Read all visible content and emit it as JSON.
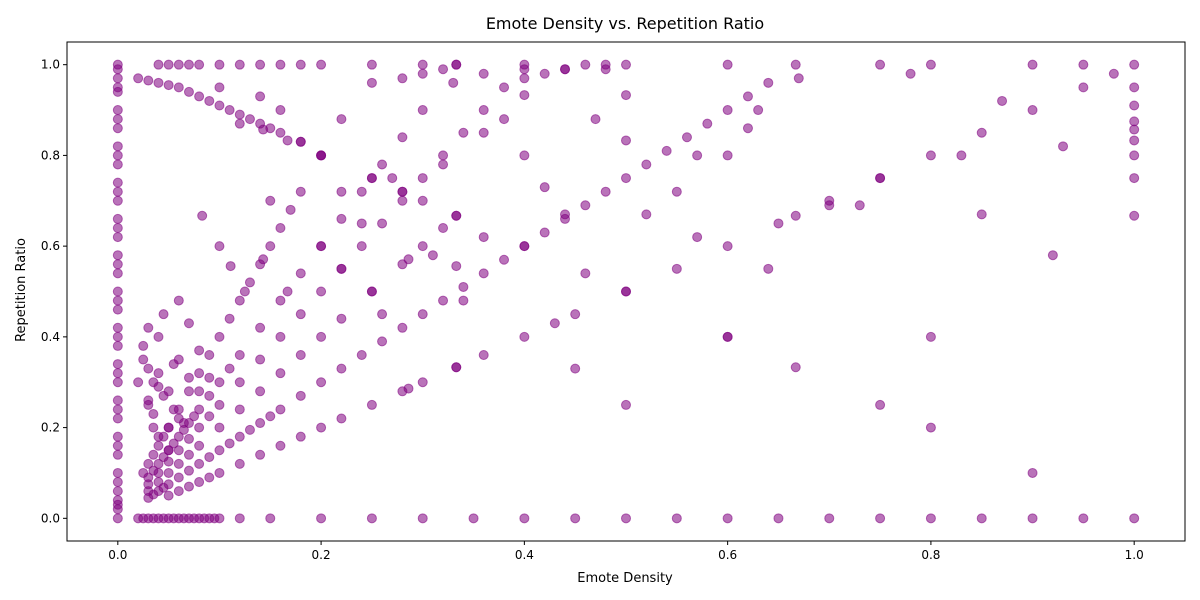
{
  "chart_data": {
    "type": "scatter",
    "title": "Emote Density vs. Repetition Ratio",
    "xlabel": "Emote Density",
    "ylabel": "Repetition Ratio",
    "xlim": [
      -0.05,
      1.05
    ],
    "ylim": [
      -0.05,
      1.05
    ],
    "x_ticks": [
      "0.0",
      "0.2",
      "0.4",
      "0.6",
      "0.8",
      "1.0"
    ],
    "y_ticks": [
      "0.0",
      "0.2",
      "0.4",
      "0.6",
      "0.8",
      "1.0"
    ],
    "grid": false,
    "marker_color": "#800080",
    "marker_alpha": 0.55,
    "series": [
      {
        "x": [
          0,
          0,
          0,
          0,
          0,
          0,
          0,
          0,
          0,
          0,
          0,
          0,
          0,
          0,
          0,
          0,
          0,
          0,
          0,
          0,
          0,
          0,
          0,
          0,
          0,
          0,
          0,
          0,
          0,
          0,
          0,
          0,
          0,
          0,
          0,
          0,
          0,
          0,
          0,
          0,
          0,
          0,
          1,
          1,
          1,
          1,
          1,
          1,
          1,
          1,
          1,
          1,
          0.04,
          0.05,
          0.06,
          0.07,
          0.08,
          0.1,
          0.12,
          0.14,
          0.16,
          0.18,
          0.2,
          0.25,
          0.3,
          0.333,
          0.4,
          0.5,
          0.6,
          0.667,
          0.75,
          0.8,
          0.9,
          0.95,
          0.05,
          0.06,
          0.07,
          0.08,
          0.09,
          0.1,
          0.12,
          0.14,
          0.16,
          0.18,
          0.2,
          0.22,
          0.25,
          0.28,
          0.3,
          0.333,
          0.36,
          0.4,
          0.43,
          0.45,
          0.5,
          0.55,
          0.6,
          0.65,
          0.7,
          0.75,
          0.8,
          0.85,
          0.9,
          0.95,
          0.98,
          0.03,
          0.04,
          0.05,
          0.06,
          0.07,
          0.08,
          0.1,
          0.12,
          0.14,
          0.16,
          0.18,
          0.2,
          0.22,
          0.25,
          0.28,
          0.3,
          0.32,
          0.03,
          0.035,
          0.04,
          0.045,
          0.05,
          0.06,
          0.07,
          0.08,
          0.09,
          0.1,
          0.11,
          0.12,
          0.13,
          0.14,
          0.15,
          0.16,
          0.18,
          0.2,
          0.22,
          0.24,
          0.26,
          0.28,
          0.3,
          0.32,
          0.34,
          0.36,
          0.38,
          0.4,
          0.42,
          0.44,
          0.46,
          0.48,
          0.5,
          0.52,
          0.54,
          0.56,
          0.58,
          0.6,
          0.62,
          0.64,
          0.03,
          0.035,
          0.04,
          0.045,
          0.05,
          0.055,
          0.06,
          0.065,
          0.07,
          0.075,
          0.08,
          0.09,
          0.1,
          0.11,
          0.12,
          0.14,
          0.16,
          0.18,
          0.2,
          0.22,
          0.24,
          0.26,
          0.28,
          0.3,
          0.33,
          0.36,
          0.4,
          0.44,
          0.48,
          0.025,
          0.03,
          0.035,
          0.04,
          0.045,
          0.05,
          0.06,
          0.07,
          0.08,
          0.09,
          0.1,
          0.11,
          0.12,
          0.13,
          0.14,
          0.15,
          0.16,
          0.17,
          0.18,
          0.2,
          0.22,
          0.25,
          0.28,
          0.3,
          0.32,
          0.333,
          0.03,
          0.04,
          0.05,
          0.06,
          0.07,
          0.08,
          0.09,
          0.1,
          0.12,
          0.14,
          0.16,
          0.18,
          0.2,
          0.22,
          0.24,
          0.26,
          0.28,
          0.3,
          0.32,
          0.34,
          0.36,
          0.38,
          0.4,
          0.42,
          0.44,
          0.46,
          0.48,
          0.02,
          0.025,
          0.03,
          0.035,
          0.04,
          0.045,
          0.05,
          0.055,
          0.06,
          0.065,
          0.07,
          0.075,
          0.08,
          0.085,
          0.09,
          0.095,
          0.1,
          0.12,
          0.15,
          0.2,
          0.25,
          0.3,
          0.35,
          0.4,
          0.45,
          0.5,
          0.55,
          0.6,
          0.65,
          0.7,
          0.75,
          0.8,
          0.85,
          0.9,
          0.95,
          0.02,
          0.03,
          0.04,
          0.05,
          0.06,
          0.07,
          0.08,
          0.09,
          0.1,
          0.11,
          0.12,
          0.13,
          0.14,
          0.15,
          0.16,
          0.18,
          0.2,
          0.25,
          0.28,
          0.3,
          0.333,
          0.4,
          0.5,
          0.6,
          0.667,
          0.75,
          0.8,
          0.9,
          0.125,
          0.143,
          0.167,
          0.2,
          0.25,
          0.286,
          0.333,
          0.4,
          0.5,
          0.6,
          0.667,
          0.75,
          0.8,
          0.083,
          0.1,
          0.111,
          0.333,
          0.25,
          0.2,
          0.143,
          0.167,
          0.5,
          0.4,
          0.333,
          0.286,
          0.5,
          0.6,
          0.02,
          0.025,
          0.03,
          0.035,
          0.04,
          0.05,
          0.06,
          0.03,
          0.04,
          0.05,
          0.025,
          0.035,
          0.045,
          0.055,
          0.065,
          0.03,
          0.04,
          0.06,
          0.07,
          0.08,
          0.045,
          0.055,
          0.035,
          0.05,
          0.04,
          0.03,
          0.06,
          0.07,
          0.08,
          0.09,
          0.1,
          0.12,
          0.14,
          0.16,
          0.18,
          0.22,
          0.24,
          0.26,
          0.28,
          0.32,
          0.34,
          0.36,
          0.38,
          0.42,
          0.44,
          0.46,
          0.55,
          0.57,
          0.62,
          0.64,
          0.67,
          0.73,
          0.83,
          0.87,
          0.92,
          0.15,
          0.22,
          0.27,
          0.31,
          0.36,
          0.45,
          0.47,
          0.52,
          0.57,
          0.63,
          0.7,
          0.78,
          0.85,
          0.93
        ],
        "y": [
          1,
          0.97,
          0.94,
          0.9,
          0.86,
          0.82,
          0.78,
          0.74,
          0.7,
          0.66,
          0.62,
          0.58,
          0.54,
          0.5,
          0.46,
          0.42,
          0.38,
          0.34,
          0.3,
          0.26,
          0.22,
          0.18,
          0.14,
          0.1,
          0.06,
          0.03,
          0,
          0.99,
          0.95,
          0.88,
          0.8,
          0.72,
          0.64,
          0.56,
          0.48,
          0.4,
          0.32,
          0.24,
          0.16,
          0.08,
          0.04,
          0.02,
          1,
          0.95,
          0.91,
          0.875,
          0.857,
          0.833,
          0.8,
          0.75,
          0.667,
          0,
          1,
          1,
          1,
          1,
          1,
          1,
          1,
          1,
          1,
          1,
          1,
          1,
          1,
          1,
          1,
          1,
          1,
          1,
          1,
          1,
          1,
          1,
          0.05,
          0.06,
          0.07,
          0.08,
          0.09,
          0.1,
          0.12,
          0.14,
          0.16,
          0.18,
          0.2,
          0.22,
          0.25,
          0.28,
          0.3,
          0.333,
          0.36,
          0.4,
          0.43,
          0.45,
          0.5,
          0.55,
          0.6,
          0.65,
          0.7,
          0.75,
          0.8,
          0.85,
          0.9,
          0.95,
          0.98,
          0.06,
          0.08,
          0.1,
          0.12,
          0.14,
          0.16,
          0.2,
          0.24,
          0.28,
          0.32,
          0.36,
          0.4,
          0.44,
          0.5,
          0.56,
          0.6,
          0.64,
          0.045,
          0.0525,
          0.06,
          0.0675,
          0.075,
          0.09,
          0.105,
          0.12,
          0.135,
          0.15,
          0.165,
          0.18,
          0.195,
          0.21,
          0.225,
          0.24,
          0.27,
          0.3,
          0.33,
          0.36,
          0.39,
          0.42,
          0.45,
          0.48,
          0.51,
          0.54,
          0.57,
          0.6,
          0.63,
          0.66,
          0.69,
          0.72,
          0.75,
          0.78,
          0.81,
          0.84,
          0.87,
          0.9,
          0.93,
          0.96,
          0.09,
          0.105,
          0.12,
          0.135,
          0.15,
          0.165,
          0.18,
          0.195,
          0.21,
          0.225,
          0.24,
          0.27,
          0.3,
          0.33,
          0.36,
          0.42,
          0.48,
          0.54,
          0.6,
          0.66,
          0.72,
          0.78,
          0.84,
          0.9,
          0.96,
          0.98,
          0.99,
          0.99,
          0.99,
          0.1,
          0.12,
          0.14,
          0.16,
          0.18,
          0.2,
          0.24,
          0.28,
          0.32,
          0.36,
          0.4,
          0.44,
          0.48,
          0.52,
          0.56,
          0.6,
          0.64,
          0.68,
          0.72,
          0.8,
          0.88,
          0.96,
          0.97,
          0.98,
          0.99,
          1,
          0.075,
          0.1,
          0.125,
          0.15,
          0.175,
          0.2,
          0.225,
          0.25,
          0.3,
          0.35,
          0.4,
          0.45,
          0.5,
          0.55,
          0.6,
          0.65,
          0.7,
          0.75,
          0.8,
          0.85,
          0.9,
          0.95,
          0.97,
          0.98,
          0.99,
          1,
          1,
          0,
          0,
          0,
          0,
          0,
          0,
          0,
          0,
          0,
          0,
          0,
          0,
          0,
          0,
          0,
          0,
          0,
          0,
          0,
          0,
          0,
          0,
          0,
          0,
          0,
          0,
          0,
          0,
          0,
          0,
          0,
          0,
          0,
          0,
          0,
          0.97,
          0.965,
          0.96,
          0.955,
          0.95,
          0.94,
          0.93,
          0.92,
          0.91,
          0.9,
          0.89,
          0.88,
          0.87,
          0.86,
          0.85,
          0.83,
          0.8,
          0.75,
          0.72,
          0.7,
          0.667,
          0.6,
          0.5,
          0.4,
          0.333,
          0.25,
          0.2,
          0.1,
          0.5,
          0.571,
          0.5,
          0.6,
          0.5,
          0.571,
          0.667,
          0.8,
          0.833,
          0.8,
          0.667,
          0.75,
          0.4,
          0.667,
          0.6,
          0.556,
          0.556,
          0.75,
          0.8,
          0.857,
          0.833,
          0.933,
          0.933,
          0.333,
          0.286,
          0.25,
          0.4,
          0.3,
          0.35,
          0.25,
          0.2,
          0.32,
          0.28,
          0.22,
          0.26,
          0.18,
          0.15,
          0.38,
          0.3,
          0.27,
          0.24,
          0.21,
          0.42,
          0.4,
          0.35,
          0.31,
          0.28,
          0.45,
          0.34,
          0.23,
          0.2,
          0.29,
          0.33,
          0.48,
          0.43,
          0.37,
          0.31,
          0.95,
          0.87,
          0.93,
          0.9,
          0.83,
          0.55,
          0.65,
          0.45,
          0.72,
          0.78,
          0.48,
          0.62,
          0.88,
          0.73,
          0.67,
          0.54,
          0.72,
          0.8,
          0.86,
          0.55,
          0.97,
          0.69,
          0.8,
          0.92,
          0.58,
          0.7,
          0.72,
          0.75,
          0.58,
          0.85,
          0.33,
          0.88,
          0.67,
          0.62,
          0.9,
          0.69,
          0.98,
          0.67,
          0.82
        ]
      }
    ]
  }
}
